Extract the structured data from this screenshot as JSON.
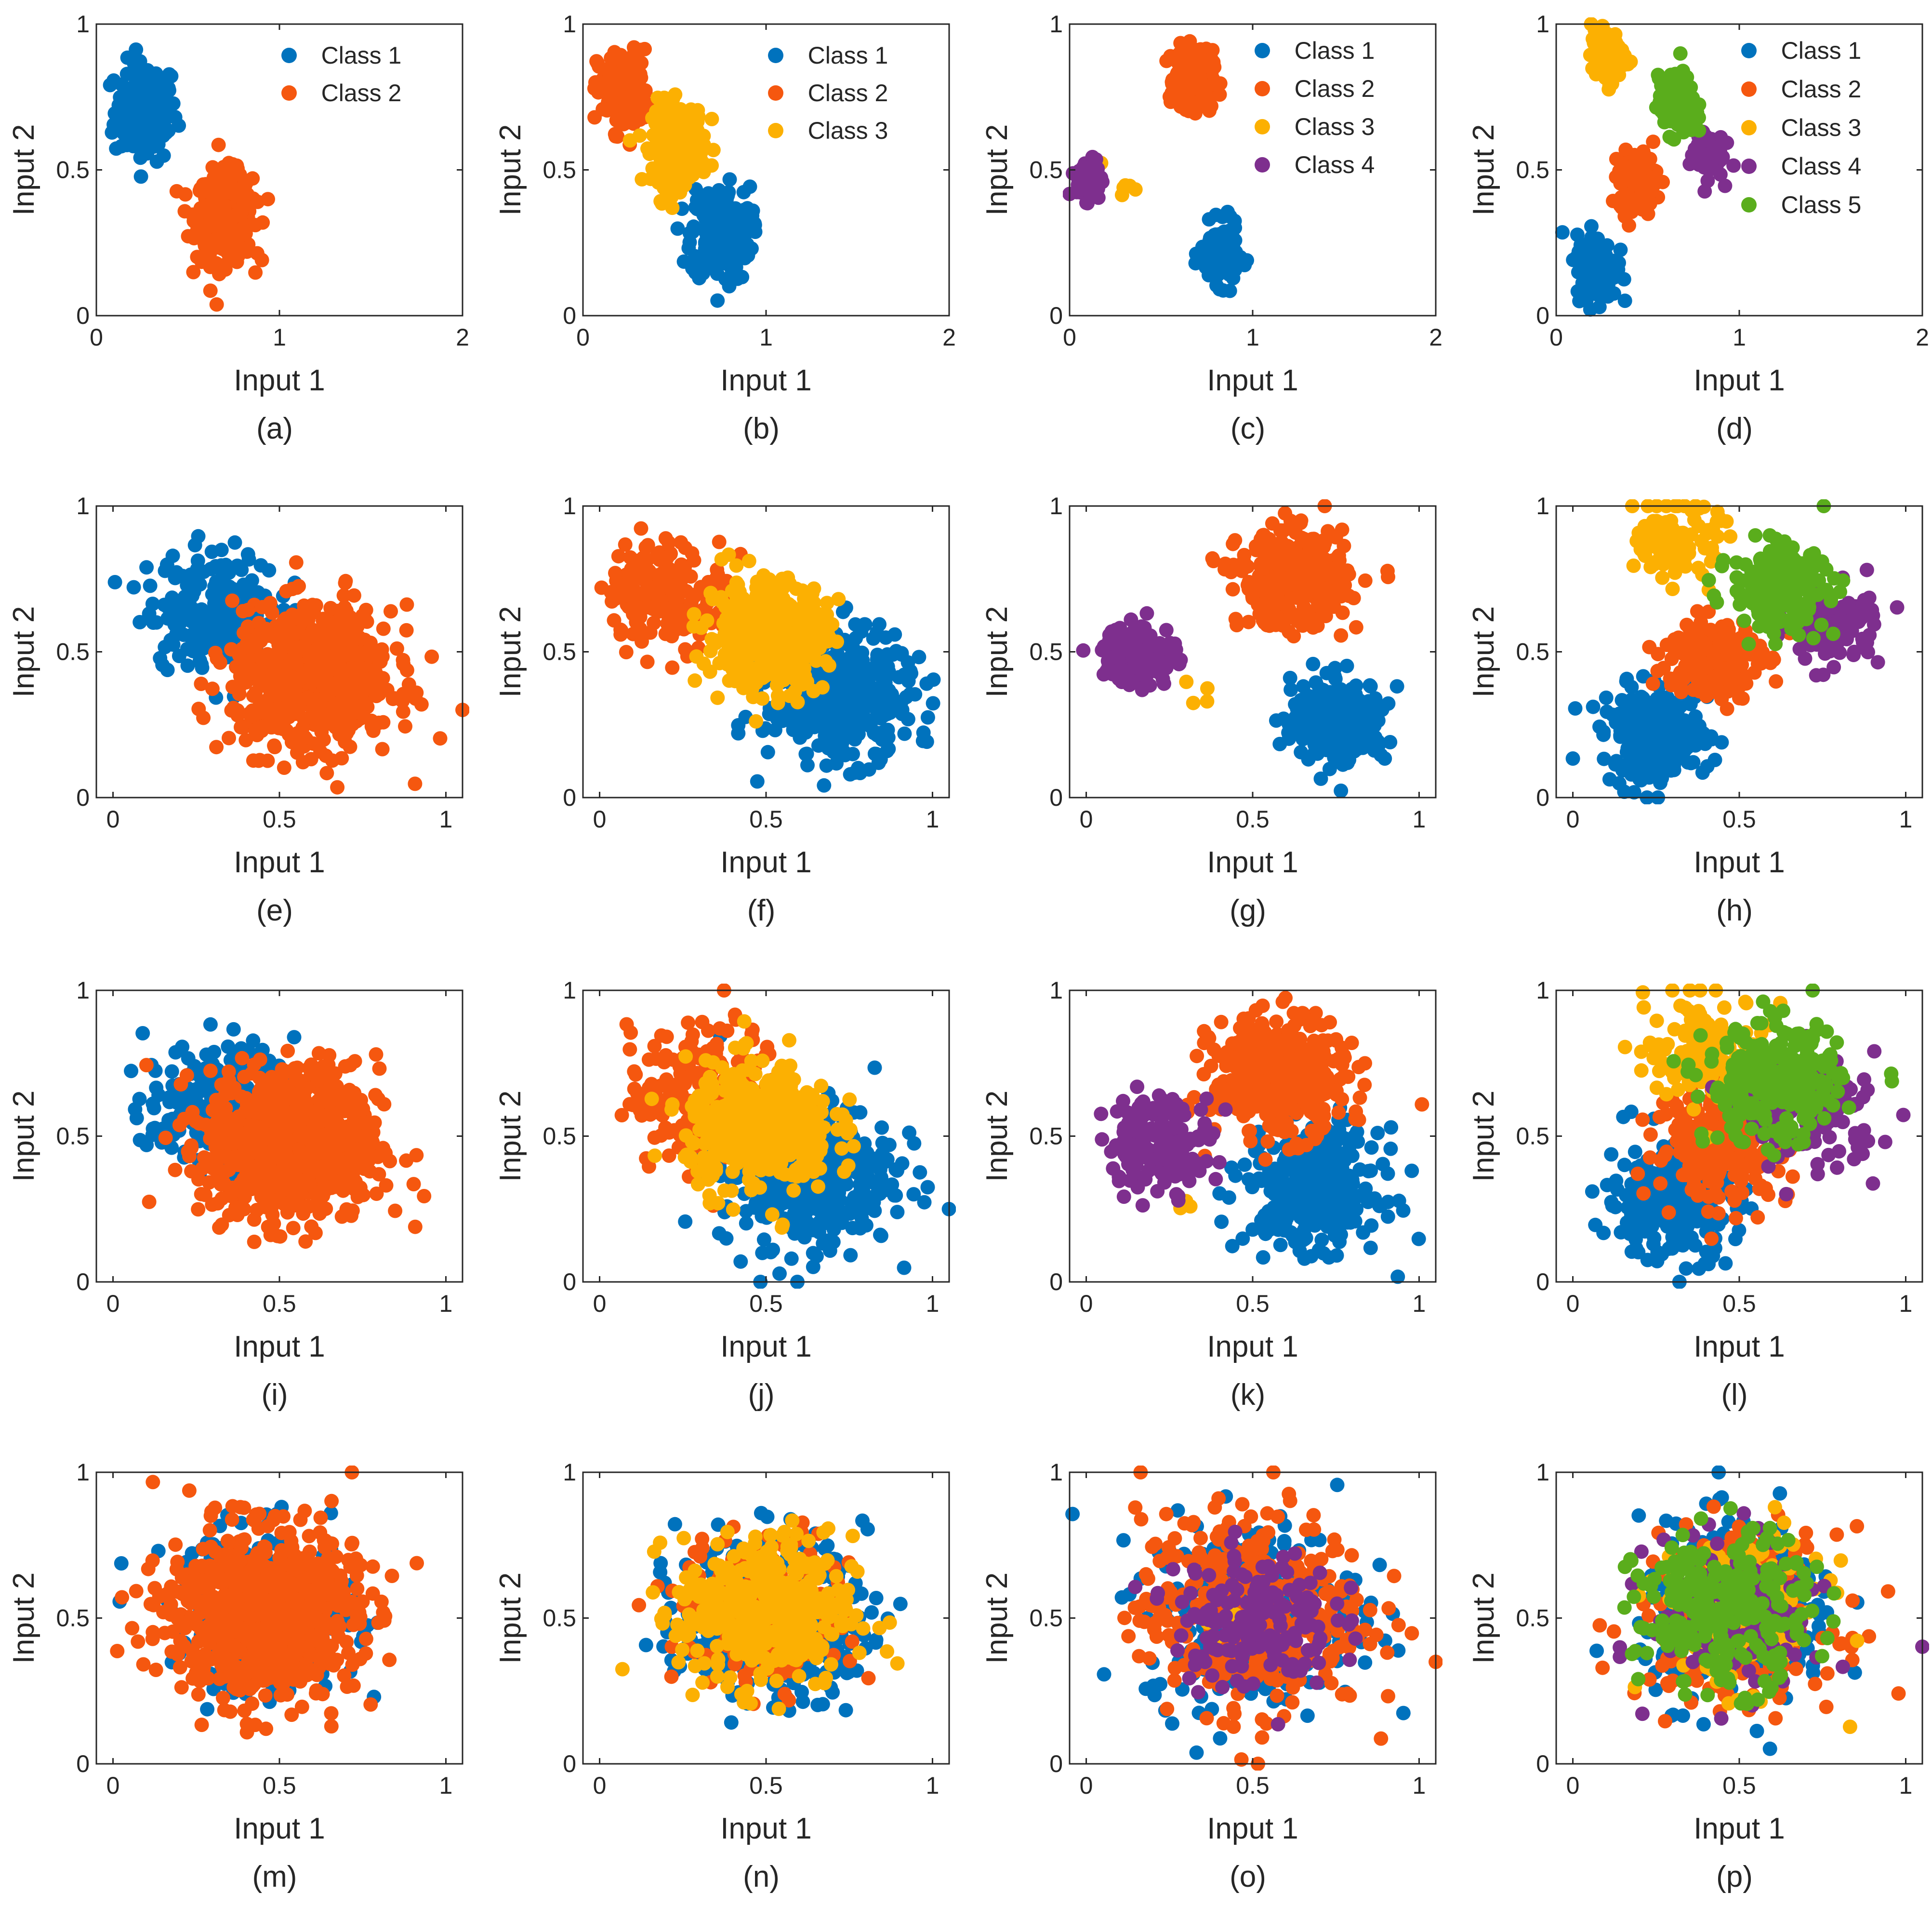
{
  "figure": {
    "description_free": true,
    "colors": {
      "Class 1": "#0072bd",
      "Class 2": "#f5570f",
      "Class 3": "#fcb002",
      "Class 4": "#7e2f8e",
      "Class 5": "#5aad1c"
    }
  },
  "chart_data": [
    {
      "panel": "(a)",
      "type": "scatter",
      "xlabel": "Input 1",
      "ylabel": "Input 2",
      "xlim": [
        0,
        2
      ],
      "ylim": [
        0,
        1
      ],
      "xticks": [
        "0",
        "1",
        "2"
      ],
      "yticks": [
        "0",
        "0.5",
        "1"
      ],
      "legend": [
        "Class 1",
        "Class 2"
      ],
      "series": [
        {
          "name": "Class 1",
          "center": [
            0.27,
            0.7
          ],
          "spread": 0.085,
          "n": 160
        },
        {
          "name": "Class 2",
          "center": [
            0.7,
            0.34
          ],
          "spread": 0.075,
          "n": 380
        }
      ]
    },
    {
      "panel": "(b)",
      "type": "scatter",
      "xlabel": "Input 1",
      "ylabel": "Input 2",
      "xlim": [
        0,
        2
      ],
      "ylim": [
        0,
        1
      ],
      "xticks": [
        "0",
        "1",
        "2"
      ],
      "yticks": [
        "0",
        "0.5",
        "1"
      ],
      "legend": [
        "Class 1",
        "Class 2",
        "Class 3"
      ],
      "series": [
        {
          "name": "Class 1",
          "center": [
            0.75,
            0.28
          ],
          "spread": 0.08,
          "n": 260
        },
        {
          "name": "Class 2",
          "center": [
            0.22,
            0.77
          ],
          "spread": 0.07,
          "n": 150
        },
        {
          "name": "Class 3",
          "center": [
            0.52,
            0.59
          ],
          "spread": 0.07,
          "n": 250
        }
      ]
    },
    {
      "panel": "(c)",
      "type": "scatter",
      "xlabel": "Input 1",
      "ylabel": "Input 2",
      "xlim": [
        0,
        2
      ],
      "ylim": [
        0,
        1
      ],
      "xticks": [
        "0",
        "1",
        "2"
      ],
      "yticks": [
        "0",
        "0.5",
        "1"
      ],
      "legend": [
        "Class 1",
        "Class 2",
        "Class 3",
        "Class 4"
      ],
      "series": [
        {
          "name": "Class 1",
          "center": [
            0.82,
            0.21
          ],
          "spread": 0.05,
          "n": 160
        },
        {
          "name": "Class 2",
          "center": [
            0.68,
            0.81
          ],
          "spread": 0.05,
          "n": 260
        },
        {
          "name": "Class 3",
          "center": [
            0.27,
            0.45
          ],
          "spread": 0.04,
          "n": 6
        },
        {
          "name": "Class 4",
          "center": [
            0.11,
            0.47
          ],
          "spread": 0.035,
          "n": 80
        }
      ]
    },
    {
      "panel": "(d)",
      "type": "scatter",
      "xlabel": "Input 1",
      "ylabel": "Input 2",
      "xlim": [
        0,
        2
      ],
      "ylim": [
        0,
        1
      ],
      "xticks": [
        "0",
        "1",
        "2"
      ],
      "yticks": [
        "0",
        "0.5",
        "1"
      ],
      "legend": [
        "Class 1",
        "Class 2",
        "Class 3",
        "Class 4",
        "Class 5"
      ],
      "series": [
        {
          "name": "Class 1",
          "center": [
            0.22,
            0.17
          ],
          "spread": 0.055,
          "n": 180
        },
        {
          "name": "Class 2",
          "center": [
            0.45,
            0.46
          ],
          "spread": 0.05,
          "n": 170
        },
        {
          "name": "Class 3",
          "center": [
            0.28,
            0.89
          ],
          "spread": 0.045,
          "n": 120
        },
        {
          "name": "Class 4",
          "center": [
            0.82,
            0.56
          ],
          "spread": 0.045,
          "n": 60
        },
        {
          "name": "Class 5",
          "center": [
            0.66,
            0.72
          ],
          "spread": 0.05,
          "n": 160
        }
      ]
    },
    {
      "panel": "(e)",
      "type": "scatter",
      "xlabel": "Input 1",
      "ylabel": "Input 2",
      "xlim": [
        -0.05,
        1.05
      ],
      "ylim": [
        0,
        1
      ],
      "xticks": [
        "0",
        "0.5",
        "1"
      ],
      "yticks": [
        "0",
        "0.5",
        "1"
      ],
      "legend": [],
      "series": [
        {
          "name": "Class 1",
          "center": [
            0.3,
            0.65
          ],
          "spread": 0.1,
          "n": 200
        },
        {
          "name": "Class 2",
          "center": [
            0.6,
            0.41
          ],
          "spread": 0.12,
          "n": 700
        }
      ]
    },
    {
      "panel": "(f)",
      "type": "scatter",
      "xlabel": "Input 1",
      "ylabel": "Input 2",
      "xlim": [
        -0.05,
        1.05
      ],
      "ylim": [
        0,
        1
      ],
      "xticks": [
        "0",
        "0.5",
        "1"
      ],
      "yticks": [
        "0",
        "0.5",
        "1"
      ],
      "legend": [],
      "series": [
        {
          "name": "Class 1",
          "center": [
            0.72,
            0.35
          ],
          "spread": 0.11,
          "n": 420
        },
        {
          "name": "Class 2",
          "center": [
            0.2,
            0.71
          ],
          "spread": 0.09,
          "n": 180
        },
        {
          "name": "Class 3",
          "center": [
            0.5,
            0.56
          ],
          "spread": 0.09,
          "n": 420
        }
      ]
    },
    {
      "panel": "(g)",
      "type": "scatter",
      "xlabel": "Input 1",
      "ylabel": "Input 2",
      "xlim": [
        -0.05,
        1.05
      ],
      "ylim": [
        0,
        1
      ],
      "xticks": [
        "0",
        "0.5",
        "1"
      ],
      "yticks": [
        "0",
        "0.5",
        "1"
      ],
      "legend": [],
      "series": [
        {
          "name": "Class 1",
          "center": [
            0.76,
            0.26
          ],
          "spread": 0.07,
          "n": 280
        },
        {
          "name": "Class 2",
          "center": [
            0.62,
            0.75
          ],
          "spread": 0.08,
          "n": 380
        },
        {
          "name": "Class 3",
          "center": [
            0.33,
            0.37
          ],
          "spread": 0.03,
          "n": 4
        },
        {
          "name": "Class 4",
          "center": [
            0.16,
            0.49
          ],
          "spread": 0.055,
          "n": 130
        }
      ]
    },
    {
      "panel": "(h)",
      "type": "scatter",
      "xlabel": "Input 1",
      "ylabel": "Input 2",
      "xlim": [
        -0.05,
        1.05
      ],
      "ylim": [
        0,
        1
      ],
      "xticks": [
        "0",
        "0.5",
        "1"
      ],
      "yticks": [
        "0",
        "0.5",
        "1"
      ],
      "legend": [],
      "series": [
        {
          "name": "Class 1",
          "center": [
            0.25,
            0.21
          ],
          "spread": 0.08,
          "n": 260
        },
        {
          "name": "Class 2",
          "center": [
            0.42,
            0.48
          ],
          "spread": 0.07,
          "n": 230
        },
        {
          "name": "Class 3",
          "center": [
            0.32,
            0.88
          ],
          "spread": 0.06,
          "n": 120
        },
        {
          "name": "Class 4",
          "center": [
            0.78,
            0.59
          ],
          "spread": 0.07,
          "n": 100
        },
        {
          "name": "Class 5",
          "center": [
            0.62,
            0.72
          ],
          "spread": 0.07,
          "n": 230
        }
      ]
    },
    {
      "panel": "(i)",
      "type": "scatter",
      "xlabel": "Input 1",
      "ylabel": "Input 2",
      "xlim": [
        -0.05,
        1.05
      ],
      "ylim": [
        0,
        1
      ],
      "xticks": [
        "0",
        "0.5",
        "1"
      ],
      "yticks": [
        "0",
        "0.5",
        "1"
      ],
      "legend": [],
      "series": [
        {
          "name": "Class 1",
          "center": [
            0.32,
            0.6
          ],
          "spread": 0.11,
          "n": 220
        },
        {
          "name": "Class 2",
          "center": [
            0.54,
            0.47
          ],
          "spread": 0.13,
          "n": 800
        }
      ]
    },
    {
      "panel": "(j)",
      "type": "scatter",
      "xlabel": "Input 1",
      "ylabel": "Input 2",
      "xlim": [
        -0.05,
        1.05
      ],
      "ylim": [
        0,
        1
      ],
      "xticks": [
        "0",
        "0.5",
        "1"
      ],
      "yticks": [
        "0",
        "0.5",
        "1"
      ],
      "legend": [],
      "series": [
        {
          "name": "Class 1",
          "center": [
            0.62,
            0.38
          ],
          "spread": 0.13,
          "n": 420
        },
        {
          "name": "Class 2",
          "center": [
            0.33,
            0.63
          ],
          "spread": 0.12,
          "n": 250
        },
        {
          "name": "Class 3",
          "center": [
            0.48,
            0.53
          ],
          "spread": 0.11,
          "n": 420
        }
      ]
    },
    {
      "panel": "(k)",
      "type": "scatter",
      "xlabel": "Input 1",
      "ylabel": "Input 2",
      "xlim": [
        -0.05,
        1.05
      ],
      "ylim": [
        0,
        1
      ],
      "xticks": [
        "0",
        "0.5",
        "1"
      ],
      "yticks": [
        "0",
        "0.5",
        "1"
      ],
      "legend": [],
      "series": [
        {
          "name": "Class 1",
          "center": [
            0.68,
            0.32
          ],
          "spread": 0.1,
          "n": 350
        },
        {
          "name": "Class 2",
          "center": [
            0.58,
            0.7
          ],
          "spread": 0.1,
          "n": 420
        },
        {
          "name": "Class 3",
          "center": [
            0.3,
            0.3
          ],
          "spread": 0.03,
          "n": 3
        },
        {
          "name": "Class 4",
          "center": [
            0.22,
            0.48
          ],
          "spread": 0.08,
          "n": 160
        }
      ]
    },
    {
      "panel": "(l)",
      "type": "scatter",
      "xlabel": "Input 1",
      "ylabel": "Input 2",
      "xlim": [
        -0.05,
        1.05
      ],
      "ylim": [
        0,
        1
      ],
      "xticks": [
        "0",
        "0.5",
        "1"
      ],
      "yticks": [
        "0",
        "0.5",
        "1"
      ],
      "legend": [],
      "series": [
        {
          "name": "Class 1",
          "center": [
            0.3,
            0.28
          ],
          "spread": 0.1,
          "n": 280
        },
        {
          "name": "Class 2",
          "center": [
            0.45,
            0.48
          ],
          "spread": 0.1,
          "n": 240
        },
        {
          "name": "Class 3",
          "center": [
            0.4,
            0.8
          ],
          "spread": 0.09,
          "n": 140
        },
        {
          "name": "Class 4",
          "center": [
            0.72,
            0.58
          ],
          "spread": 0.1,
          "n": 130
        },
        {
          "name": "Class 5",
          "center": [
            0.6,
            0.68
          ],
          "spread": 0.1,
          "n": 280
        }
      ]
    },
    {
      "panel": "(m)",
      "type": "scatter",
      "xlabel": "Input 1",
      "ylabel": "Input 2",
      "xlim": [
        -0.05,
        1.05
      ],
      "ylim": [
        0,
        1
      ],
      "xticks": [
        "0",
        "0.5",
        "1"
      ],
      "yticks": [
        "0",
        "0.5",
        "1"
      ],
      "legend": [],
      "series": [
        {
          "name": "Class 1",
          "center": [
            0.45,
            0.52
          ],
          "spread": 0.14,
          "n": 250
        },
        {
          "name": "Class 2",
          "center": [
            0.45,
            0.52
          ],
          "spread": 0.14,
          "n": 850
        }
      ]
    },
    {
      "panel": "(n)",
      "type": "scatter",
      "xlabel": "Input 1",
      "ylabel": "Input 2",
      "xlim": [
        -0.05,
        1.05
      ],
      "ylim": [
        0,
        1
      ],
      "xticks": [
        "0",
        "0.5",
        "1"
      ],
      "yticks": [
        "0",
        "0.5",
        "1"
      ],
      "legend": [],
      "series": [
        {
          "name": "Class 1",
          "center": [
            0.52,
            0.5
          ],
          "spread": 0.14,
          "n": 380
        },
        {
          "name": "Class 2",
          "center": [
            0.5,
            0.52
          ],
          "spread": 0.13,
          "n": 200
        },
        {
          "name": "Class 3",
          "center": [
            0.5,
            0.52
          ],
          "spread": 0.13,
          "n": 400
        }
      ]
    },
    {
      "panel": "(o)",
      "type": "scatter",
      "xlabel": "Input 1",
      "ylabel": "Input 2",
      "xlim": [
        -0.05,
        1.05
      ],
      "ylim": [
        0,
        1
      ],
      "xticks": [
        "0",
        "0.5",
        "1"
      ],
      "yticks": [
        "0",
        "0.5",
        "1"
      ],
      "legend": [],
      "series": [
        {
          "name": "Class 1",
          "center": [
            0.5,
            0.52
          ],
          "spread": 0.16,
          "n": 300
        },
        {
          "name": "Class 2",
          "center": [
            0.5,
            0.52
          ],
          "spread": 0.17,
          "n": 400
        },
        {
          "name": "Class 3",
          "center": [
            0.5,
            0.52
          ],
          "spread": 0.1,
          "n": 5
        },
        {
          "name": "Class 4",
          "center": [
            0.5,
            0.5
          ],
          "spread": 0.12,
          "n": 170
        }
      ]
    },
    {
      "panel": "(p)",
      "type": "scatter",
      "xlabel": "Input 1",
      "ylabel": "Input 2",
      "xlim": [
        -0.05,
        1.05
      ],
      "ylim": [
        0,
        1
      ],
      "xticks": [
        "0",
        "0.5",
        "1"
      ],
      "yticks": [
        "0",
        "0.5",
        "1"
      ],
      "legend": [],
      "series": [
        {
          "name": "Class 1",
          "center": [
            0.5,
            0.52
          ],
          "spread": 0.15,
          "n": 250
        },
        {
          "name": "Class 2",
          "center": [
            0.5,
            0.5
          ],
          "spread": 0.15,
          "n": 220
        },
        {
          "name": "Class 3",
          "center": [
            0.5,
            0.52
          ],
          "spread": 0.13,
          "n": 140
        },
        {
          "name": "Class 4",
          "center": [
            0.5,
            0.52
          ],
          "spread": 0.13,
          "n": 140
        },
        {
          "name": "Class 5",
          "center": [
            0.45,
            0.52
          ],
          "spread": 0.13,
          "n": 250
        }
      ]
    }
  ]
}
